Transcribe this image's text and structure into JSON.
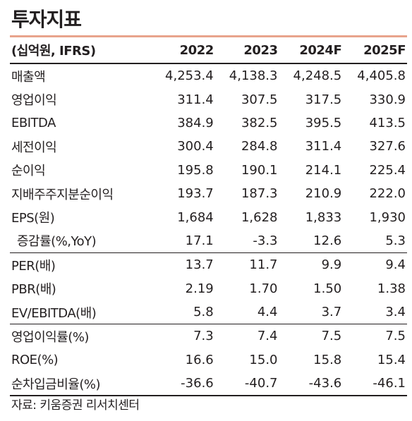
{
  "title": "투자지표",
  "header": {
    "unit_label": "(십억원, IFRS)",
    "years": [
      "2022",
      "2023",
      "2024F",
      "2025F"
    ]
  },
  "rows": [
    {
      "label": "매출액",
      "values": [
        "4,253.4",
        "4,138.3",
        "4,248.5",
        "4,405.8"
      ]
    },
    {
      "label": "영업이익",
      "values": [
        "311.4",
        "307.5",
        "317.5",
        "330.9"
      ]
    },
    {
      "label": "EBITDA",
      "values": [
        "384.9",
        "382.5",
        "395.5",
        "413.5"
      ]
    },
    {
      "label": "세전이익",
      "values": [
        "300.4",
        "284.8",
        "311.4",
        "327.6"
      ]
    },
    {
      "label": "순이익",
      "values": [
        "195.8",
        "190.1",
        "214.1",
        "225.4"
      ]
    },
    {
      "label": "지배주주지분순이익",
      "values": [
        "193.7",
        "187.3",
        "210.9",
        "222.0"
      ]
    },
    {
      "label": "EPS(원)",
      "values": [
        "1,684",
        "1,628",
        "1,833",
        "1,930"
      ]
    },
    {
      "label": "증감률(%,YoY)",
      "values": [
        "17.1",
        "-3.3",
        "12.6",
        "5.3"
      ]
    },
    {
      "label": "PER(배)",
      "values": [
        "13.7",
        "11.7",
        "9.9",
        "9.4"
      ]
    },
    {
      "label": "PBR(배)",
      "values": [
        "2.19",
        "1.70",
        "1.50",
        "1.38"
      ]
    },
    {
      "label": "EV/EBITDA(배)",
      "values": [
        "5.8",
        "4.4",
        "3.7",
        "3.4"
      ]
    },
    {
      "label": "영업이익률(%)",
      "values": [
        "7.3",
        "7.4",
        "7.5",
        "7.5"
      ]
    },
    {
      "label": "ROE(%)",
      "values": [
        "16.6",
        "15.0",
        "15.8",
        "15.4"
      ]
    },
    {
      "label": "순차입금비율(%)",
      "values": [
        "-36.6",
        "-40.7",
        "-43.6",
        "-46.1"
      ]
    }
  ],
  "source": "자료: 키움증권 리서치센터",
  "colors": {
    "title_rule": "#e8a48c",
    "text": "#231f20"
  }
}
